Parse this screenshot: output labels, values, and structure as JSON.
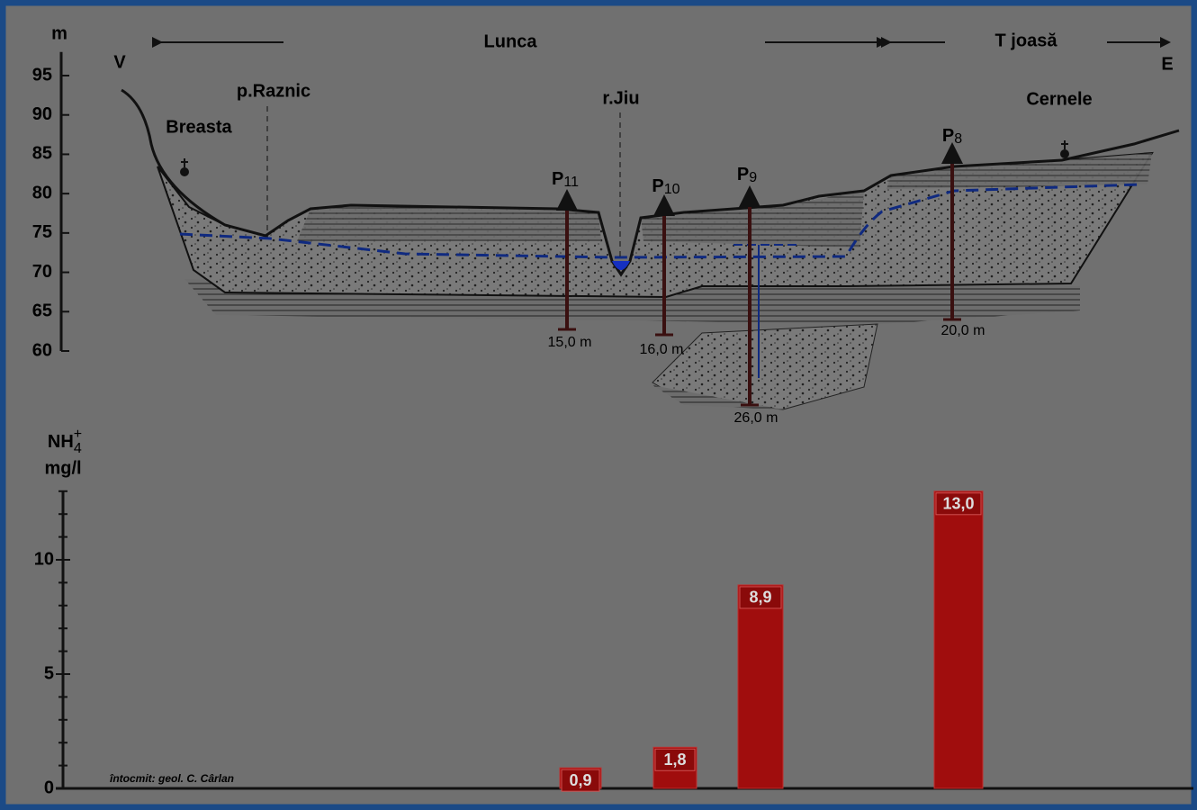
{
  "section": {
    "axis_label": "m",
    "ylim": [
      60,
      98
    ],
    "yticks": [
      60,
      65,
      70,
      75,
      80,
      85,
      90,
      95
    ],
    "west": "V",
    "east": "E",
    "zones": [
      "Lunca",
      "T joasă"
    ],
    "places": [
      "Breasta",
      "p.Raznic",
      "r.Jiu",
      "Cernele"
    ],
    "wells": [
      {
        "letter": "P",
        "number": "11",
        "depth": "15,0 m"
      },
      {
        "letter": "P",
        "number": "10",
        "depth": "16,0 m"
      },
      {
        "letter": "P",
        "number": "9",
        "depth": "26,0 m"
      },
      {
        "letter": "P",
        "number": "8",
        "depth": "20,0 m"
      }
    ]
  },
  "chart_data": {
    "type": "bar",
    "y_label": {
      "base": "NH",
      "sub": "4",
      "sup": "+",
      "unit": "mg/l"
    },
    "categories": [
      null,
      null,
      null,
      null
    ],
    "values": [
      0.9,
      1.8,
      8.9,
      13.0
    ],
    "value_labels": [
      "0,9",
      "1,8",
      "8,9",
      "13,0"
    ],
    "color": "#a00d0d",
    "ylim": [
      0,
      13
    ],
    "yticks": [
      0,
      5,
      10
    ],
    "minor_yticks": [
      1,
      2,
      3,
      4,
      6,
      7,
      8,
      9,
      11,
      12,
      13
    ]
  },
  "credit": "întocmit: geol. C. Cârlan"
}
